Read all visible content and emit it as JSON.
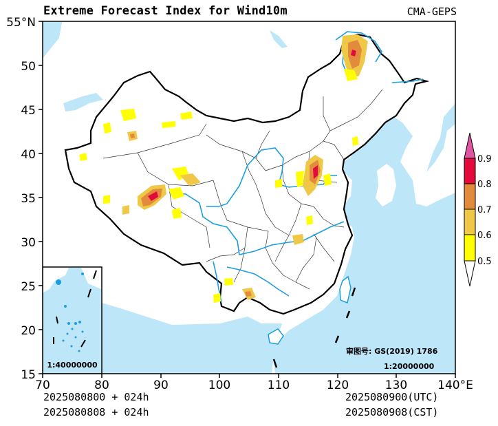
{
  "header": {
    "title": "Extreme Forecast Index for Wind10m",
    "model": "CMA-GEPS"
  },
  "footer": {
    "left_line1": "2025080800 + 024h",
    "left_line2": "2025080808 + 024h",
    "right_line1": "2025080900(UTC)",
    "right_line2": "2025080908(CST)"
  },
  "map": {
    "lat_ticks": [
      "55°N",
      "50",
      "45",
      "40",
      "35",
      "30",
      "25",
      "20",
      "15"
    ],
    "lon_ticks": [
      "70",
      "80",
      "90",
      "100",
      "110",
      "120",
      "130",
      "140°E"
    ],
    "lat_range": [
      15,
      55
    ],
    "lon_range": [
      70,
      140
    ],
    "review_number": "审图号: GS(2019) 1786",
    "main_scale": "1:20000000",
    "inset_scale": "1:40000000"
  },
  "legend": {
    "levels": [
      "0.5",
      "0.6",
      "0.7",
      "0.8",
      "0.9"
    ],
    "colors": [
      "#ffff00",
      "#f0c848",
      "#e38b3c",
      "#e30a3c",
      "#e055a0"
    ]
  },
  "colors": {
    "sea": "#bde6f8",
    "river": "#1a9ee0",
    "border": "#000000"
  }
}
